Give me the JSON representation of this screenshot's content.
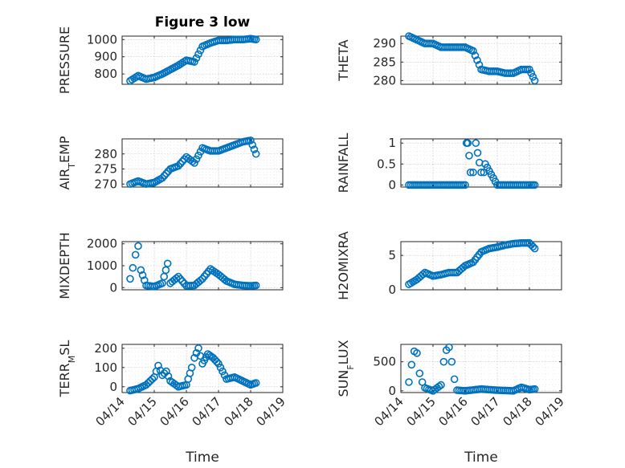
{
  "figure": {
    "title": "Figure 3 low"
  },
  "colors": {
    "marker": "#0072BD",
    "axis": "#262626"
  },
  "chart_data": [
    {
      "id": "pressure",
      "type": "scatter",
      "title": "Figure 3 low",
      "ylabel": "PRESSURE",
      "xlabel": "",
      "ylim": [
        740,
        1020
      ],
      "yticks": [
        800,
        900,
        1000
      ],
      "xticks": [],
      "x": [
        "04/14 06:00",
        "04/14 12:00",
        "04/14 18:00",
        "04/15 00:00",
        "04/15 06:00",
        "04/15 12:00",
        "04/15 18:00",
        "04/16 00:00",
        "04/16 06:00",
        "04/16 12:00",
        "04/16 18:00",
        "04/17 00:00",
        "04/17 06:00",
        "04/17 12:00",
        "04/17 18:00",
        "04/18 00:00",
        "04/18 04:00"
      ],
      "y": [
        760,
        790,
        770,
        780,
        800,
        825,
        850,
        880,
        870,
        960,
        980,
        995,
        995,
        1000,
        1000,
        1005,
        1000
      ]
    },
    {
      "id": "theta",
      "type": "scatter",
      "ylabel": "THETA",
      "xlabel": "",
      "ylim": [
        279,
        292
      ],
      "yticks": [
        280,
        285,
        290
      ],
      "xticks": [],
      "x": [
        "04/14 06:00",
        "04/14 12:00",
        "04/14 18:00",
        "04/15 00:00",
        "04/15 06:00",
        "04/15 12:00",
        "04/15 18:00",
        "04/16 00:00",
        "04/16 06:00",
        "04/16 12:00",
        "04/16 18:00",
        "04/17 00:00",
        "04/17 06:00",
        "04/17 12:00",
        "04/17 18:00",
        "04/18 00:00",
        "04/18 04:00"
      ],
      "y": [
        292,
        291,
        290,
        290,
        289,
        289,
        289,
        289,
        288,
        283,
        282.5,
        282.5,
        282,
        282,
        283,
        283,
        280
      ]
    },
    {
      "id": "air_temp",
      "type": "scatter",
      "ylabel": "AIR_TEMP",
      "xlabel": "",
      "ylim": [
        269,
        285
      ],
      "yticks": [
        270,
        275,
        280
      ],
      "xticks": [],
      "x": [
        "04/14 06:00",
        "04/14 12:00",
        "04/14 18:00",
        "04/15 00:00",
        "04/15 06:00",
        "04/15 12:00",
        "04/15 18:00",
        "04/16 00:00",
        "04/16 06:00",
        "04/16 12:00",
        "04/16 18:00",
        "04/17 00:00",
        "04/17 06:00",
        "04/17 12:00",
        "04/17 18:00",
        "04/18 00:00",
        "04/18 04:00"
      ],
      "y": [
        270,
        271,
        270,
        270.5,
        272,
        275,
        276,
        279,
        277,
        282,
        281,
        281,
        282,
        283,
        284,
        284.5,
        280
      ]
    },
    {
      "id": "rainfall",
      "type": "scatter",
      "ylabel": "RAINFALL",
      "xlabel": "",
      "ylim": [
        -0.05,
        1.1
      ],
      "yticks": [
        0,
        0.5,
        1
      ],
      "ytick_labels": [
        "0",
        "0.5",
        "1"
      ],
      "xticks": [],
      "x": [
        "04/14 06:00",
        "04/14 18:00",
        "04/15 06:00",
        "04/15 18:00",
        "04/16 00:00",
        "04/16 01:00",
        "04/16 02:00",
        "04/16 03:00",
        "04/16 04:00",
        "04/16 06:00",
        "04/16 08:00",
        "04/16 12:00",
        "04/16 14:00",
        "04/16 15:00",
        "04/17 00:00",
        "04/17 12:00",
        "04/18 00:00",
        "04/18 04:00"
      ],
      "y": [
        0,
        0,
        0,
        0,
        0,
        1,
        1,
        0.7,
        0.3,
        0.3,
        1,
        0.3,
        0.3,
        0.5,
        0,
        0,
        0,
        0
      ]
    },
    {
      "id": "mixdepth",
      "type": "scatter",
      "ylabel": "MIXDEPTH",
      "xlabel": "",
      "ylim": [
        -100,
        2100
      ],
      "yticks": [
        0,
        1000,
        2000
      ],
      "xticks": [],
      "x": [
        "04/14 06:00",
        "04/14 08:00",
        "04/14 10:00",
        "04/14 12:00",
        "04/14 14:00",
        "04/14 18:00",
        "04/15 00:00",
        "04/15 06:00",
        "04/15 10:00",
        "04/15 12:00",
        "04/15 18:00",
        "04/16 00:00",
        "04/16 06:00",
        "04/16 12:00",
        "04/16 18:00",
        "04/17 00:00",
        "04/17 06:00",
        "04/17 12:00",
        "04/17 18:00",
        "04/18 00:00",
        "04/18 04:00"
      ],
      "y": [
        400,
        900,
        1500,
        1900,
        800,
        100,
        50,
        200,
        1100,
        200,
        500,
        80,
        100,
        400,
        850,
        600,
        300,
        150,
        100,
        80,
        100
      ]
    },
    {
      "id": "h2omixra",
      "type": "scatter",
      "ylabel": "H2OMIXRA",
      "xlabel": "",
      "ylim": [
        0,
        7
      ],
      "yticks": [
        0,
        5
      ],
      "xticks": [],
      "x": [
        "04/14 06:00",
        "04/14 12:00",
        "04/14 18:00",
        "04/15 00:00",
        "04/15 06:00",
        "04/15 12:00",
        "04/15 18:00",
        "04/16 00:00",
        "04/16 06:00",
        "04/16 12:00",
        "04/16 18:00",
        "04/17 00:00",
        "04/17 06:00",
        "04/17 12:00",
        "04/17 18:00",
        "04/18 00:00",
        "04/18 04:00"
      ],
      "y": [
        0.8,
        1.5,
        2.5,
        2,
        2.2,
        2.5,
        2.5,
        3.5,
        4,
        5.5,
        6,
        6.2,
        6.5,
        6.7,
        6.8,
        6.8,
        6
      ]
    },
    {
      "id": "terr_msl",
      "type": "scatter",
      "ylabel": "TERR_MSL",
      "xlabel": "Time",
      "ylim": [
        -30,
        220
      ],
      "yticks": [
        0,
        100,
        200
      ],
      "xticks": [
        "04/14",
        "04/15",
        "04/16",
        "04/17",
        "04/18",
        "04/19"
      ],
      "x": [
        "04/14 06:00",
        "04/14 12:00",
        "04/14 18:00",
        "04/15 00:00",
        "04/15 03:00",
        "04/15 06:00",
        "04/15 09:00",
        "04/15 12:00",
        "04/15 18:00",
        "04/16 00:00",
        "04/16 04:00",
        "04/16 06:00",
        "04/16 09:00",
        "04/16 12:00",
        "04/16 16:00",
        "04/16 20:00",
        "04/17 00:00",
        "04/17 06:00",
        "04/17 12:00",
        "04/17 18:00",
        "04/18 00:00",
        "04/18 04:00"
      ],
      "y": [
        -20,
        -10,
        10,
        50,
        110,
        60,
        80,
        30,
        0,
        10,
        100,
        150,
        200,
        120,
        170,
        150,
        120,
        40,
        50,
        30,
        10,
        20
      ]
    },
    {
      "id": "sun_flux",
      "type": "scatter",
      "ylabel": "SUN_FLUX",
      "xlabel": "Time",
      "ylim": [
        -30,
        800
      ],
      "yticks": [
        0,
        500
      ],
      "xticks": [
        "04/14",
        "04/15",
        "04/16",
        "04/17",
        "04/18",
        "04/19"
      ],
      "x": [
        "04/14 06:00",
        "04/14 08:00",
        "04/14 10:00",
        "04/14 12:00",
        "04/14 14:00",
        "04/14 16:00",
        "04/14 18:00",
        "04/15 00:00",
        "04/15 06:00",
        "04/15 08:00",
        "04/15 10:00",
        "04/15 12:00",
        "04/15 14:00",
        "04/15 16:00",
        "04/15 18:00",
        "04/16 00:00",
        "04/16 12:00",
        "04/17 00:00",
        "04/17 12:00",
        "04/17 18:00",
        "04/18 00:00",
        "04/18 04:00"
      ],
      "y": [
        150,
        450,
        680,
        650,
        300,
        150,
        50,
        0,
        100,
        500,
        700,
        750,
        500,
        200,
        10,
        0,
        30,
        10,
        0,
        60,
        20,
        30
      ]
    }
  ]
}
